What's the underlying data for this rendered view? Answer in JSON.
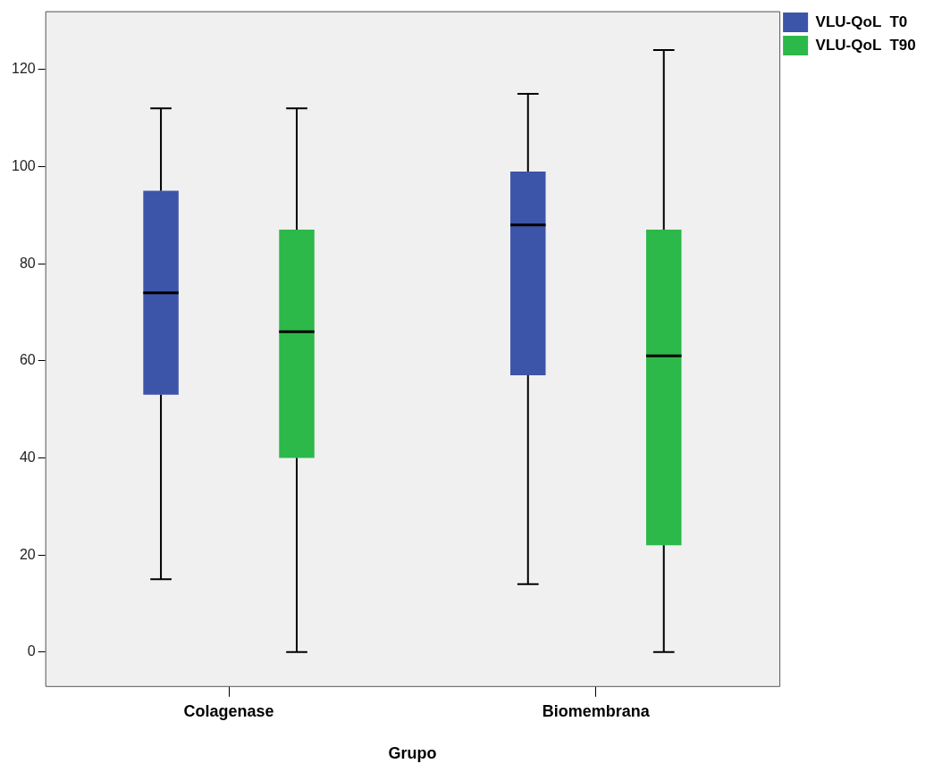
{
  "chart_data": {
    "type": "box",
    "xlabel": "Grupo",
    "categories": [
      "Colagenase",
      "Biomembrana"
    ],
    "series": [
      {
        "name": "VLU-QoL  T0",
        "color": "#3d55a8",
        "boxes": [
          {
            "low": 15,
            "q1": 53,
            "median": 74,
            "q3": 95,
            "high": 112
          },
          {
            "low": 14,
            "q1": 57,
            "median": 88,
            "q3": 99,
            "high": 115
          }
        ]
      },
      {
        "name": "VLU-QoL  T90",
        "color": "#2db84a",
        "boxes": [
          {
            "low": 0,
            "q1": 40,
            "median": 66,
            "q3": 87,
            "high": 112
          },
          {
            "low": 0,
            "q1": 22,
            "median": 61,
            "q3": 87,
            "high": 124
          }
        ]
      }
    ],
    "ylim": [
      -7,
      132
    ],
    "yticks": [
      0,
      20,
      40,
      60,
      80,
      100,
      120
    ],
    "grid": false,
    "legend": "top right"
  }
}
